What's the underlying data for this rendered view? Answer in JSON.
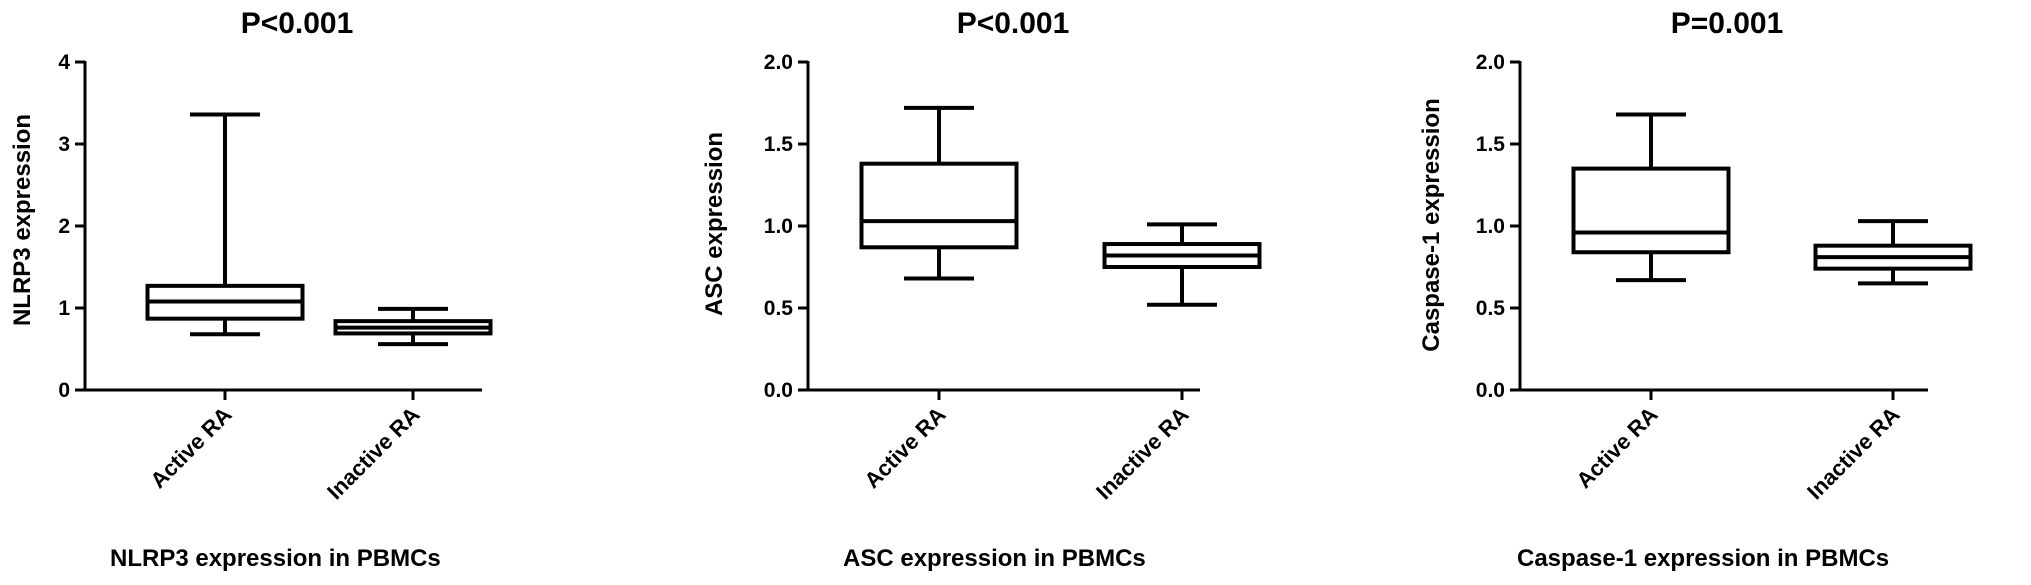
{
  "chart_data": [
    {
      "type": "box",
      "title": "P<0.001",
      "ylabel": "NLRP3 expression",
      "caption": "NLRP3 expression in PBMCs",
      "ylim": [
        0,
        4
      ],
      "yticks": [
        0,
        1,
        2,
        3,
        4
      ],
      "tick_labels": [
        "0",
        "1",
        "2",
        "3",
        "4"
      ],
      "categories": [
        "Active RA",
        "Inactive RA"
      ],
      "boxes": [
        {
          "min": 0.68,
          "q1": 0.87,
          "median": 1.08,
          "q3": 1.27,
          "max": 3.36
        },
        {
          "min": 0.56,
          "q1": 0.69,
          "median": 0.76,
          "q3": 0.84,
          "max": 0.99
        }
      ]
    },
    {
      "type": "box",
      "title": "P<0.001",
      "ylabel": "ASC expression",
      "caption": "ASC expression in PBMCs",
      "ylim": [
        0,
        2
      ],
      "yticks": [
        0,
        0.5,
        1,
        1.5,
        2
      ],
      "tick_labels": [
        "0.0",
        "0.5",
        "1.0",
        "1.5",
        "2.0"
      ],
      "categories": [
        "Active RA",
        "Inactive RA"
      ],
      "boxes": [
        {
          "min": 0.68,
          "q1": 0.87,
          "median": 1.03,
          "q3": 1.38,
          "max": 1.72
        },
        {
          "min": 0.52,
          "q1": 0.75,
          "median": 0.82,
          "q3": 0.89,
          "max": 1.01
        }
      ]
    },
    {
      "type": "box",
      "title": "P=0.001",
      "ylabel": "Caspase-1 expression",
      "caption": "Caspase-1 expression in PBMCs",
      "ylim": [
        0,
        2
      ],
      "yticks": [
        0,
        0.5,
        1,
        1.5,
        2
      ],
      "tick_labels": [
        "0.0",
        "0.5",
        "1.0",
        "1.5",
        "2.0"
      ],
      "categories": [
        "Active RA",
        "Inactive RA"
      ],
      "boxes": [
        {
          "min": 0.67,
          "q1": 0.84,
          "median": 0.96,
          "q3": 1.35,
          "max": 1.68
        },
        {
          "min": 0.65,
          "q1": 0.74,
          "median": 0.81,
          "q3": 0.88,
          "max": 1.03
        }
      ]
    }
  ]
}
